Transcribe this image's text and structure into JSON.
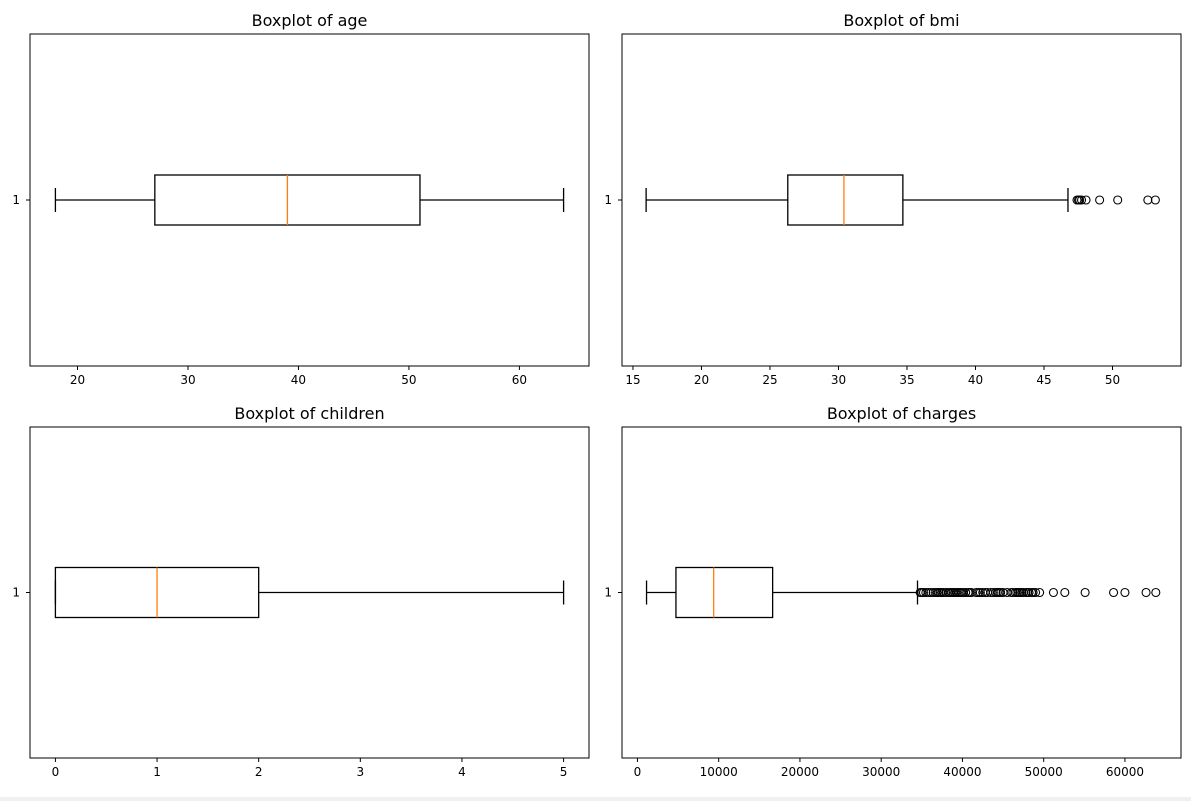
{
  "chart_data": [
    {
      "type": "boxplot",
      "title": "Boxplot of age",
      "orientation": "horizontal",
      "category_label": "1",
      "xlim": [
        15.7,
        66.3
      ],
      "xticks": [
        20,
        30,
        40,
        50,
        60
      ],
      "xtick_labels": [
        "20",
        "30",
        "40",
        "50",
        "60"
      ],
      "whisker_low": 18,
      "q1": 27,
      "median": 39,
      "q3": 51,
      "whisker_high": 64,
      "outliers": [],
      "colors": {
        "box": "#000000",
        "median": "#ff7f0e"
      }
    },
    {
      "type": "boxplot",
      "title": "Boxplot of bmi",
      "orientation": "horizontal",
      "category_label": "1",
      "xlim": [
        14.2,
        55.0
      ],
      "xticks": [
        15,
        20,
        25,
        30,
        35,
        40,
        45,
        50
      ],
      "xtick_labels": [
        "15",
        "20",
        "25",
        "30",
        "35",
        "40",
        "45",
        "50"
      ],
      "whisker_low": 15.96,
      "q1": 26.3,
      "median": 30.4,
      "q3": 34.7,
      "whisker_high": 46.75,
      "outliers": [
        47.41,
        47.52,
        47.6,
        47.74,
        48.07,
        49.06,
        50.38,
        52.58,
        53.13
      ],
      "colors": {
        "box": "#000000",
        "median": "#ff7f0e"
      }
    },
    {
      "type": "boxplot",
      "title": "Boxplot of children",
      "orientation": "horizontal",
      "category_label": "1",
      "xlim": [
        -0.25,
        5.25
      ],
      "xticks": [
        0,
        1,
        2,
        3,
        4,
        5
      ],
      "xtick_labels": [
        "0",
        "1",
        "2",
        "3",
        "4",
        "5"
      ],
      "whisker_low": 0,
      "q1": 0,
      "median": 1,
      "q3": 2,
      "whisker_high": 5,
      "outliers": [],
      "colors": {
        "box": "#000000",
        "median": "#ff7f0e"
      }
    },
    {
      "type": "boxplot",
      "title": "Boxplot of charges",
      "orientation": "horizontal",
      "category_label": "1",
      "xlim": [
        -1900,
        66900
      ],
      "xticks": [
        0,
        10000,
        20000,
        30000,
        40000,
        50000,
        60000
      ],
      "xtick_labels": [
        "0",
        "10000",
        "20000",
        "30000",
        "40000",
        "50000",
        "60000"
      ],
      "whisker_low": 1121,
      "q1": 4740,
      "median": 9382,
      "q3": 16640,
      "whisker_high": 34470,
      "outliers": [
        34800,
        35000,
        35200,
        35500,
        35800,
        36100,
        36400,
        36700,
        36900,
        37100,
        37300,
        37500,
        37700,
        38000,
        38300,
        38500,
        38700,
        38900,
        39100,
        39300,
        39500,
        39700,
        39900,
        40100,
        40400,
        40700,
        40900,
        41100,
        41700,
        42000,
        42200,
        42500,
        42800,
        43100,
        43500,
        43800,
        44100,
        44300,
        44500,
        44700,
        45000,
        45500,
        46000,
        46200,
        46500,
        46700,
        46900,
        47100,
        47300,
        47500,
        47800,
        48000,
        48200,
        48500,
        48700,
        49000,
        49500,
        51200,
        52600,
        55100,
        58600,
        60000,
        62600,
        63800
      ],
      "colors": {
        "box": "#000000",
        "median": "#ff7f0e"
      }
    }
  ]
}
